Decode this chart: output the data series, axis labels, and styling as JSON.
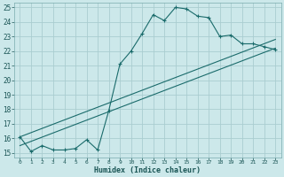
{
  "xlabel": "Humidex (Indice chaleur)",
  "bg_color": "#cce8ea",
  "grid_color": "#aacdd0",
  "line_color": "#1a6b6b",
  "xlim": [
    -0.5,
    23.5
  ],
  "ylim": [
    14.7,
    25.3
  ],
  "xticks": [
    0,
    1,
    2,
    3,
    4,
    5,
    6,
    7,
    8,
    9,
    10,
    11,
    12,
    13,
    14,
    15,
    16,
    17,
    18,
    19,
    20,
    21,
    22,
    23
  ],
  "yticks": [
    15,
    16,
    17,
    18,
    19,
    20,
    21,
    22,
    23,
    24,
    25
  ],
  "line1_x": [
    0,
    1,
    2,
    3,
    4,
    5,
    6,
    7,
    8,
    9,
    10,
    11,
    12,
    13,
    14,
    15,
    16,
    17,
    18,
    19,
    20,
    21,
    22,
    23
  ],
  "line1_y": [
    16.1,
    15.1,
    15.5,
    15.2,
    15.2,
    15.3,
    15.9,
    15.2,
    17.9,
    21.1,
    22.0,
    23.2,
    24.5,
    24.1,
    25.0,
    24.9,
    24.4,
    24.3,
    23.0,
    23.1,
    22.5,
    22.5,
    22.3,
    22.1
  ],
  "line2_x": [
    0,
    23
  ],
  "line2_y": [
    15.5,
    22.2
  ],
  "line3_x": [
    0,
    23
  ],
  "line3_y": [
    16.1,
    22.8
  ]
}
